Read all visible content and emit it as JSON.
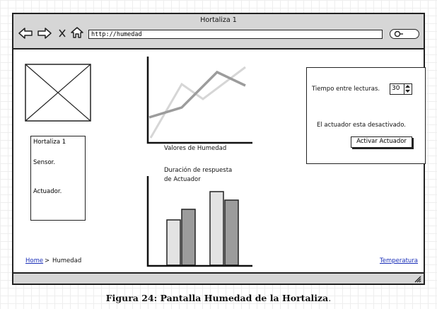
{
  "window": {
    "title": "Hortaliza 1",
    "url": "http://humedad"
  },
  "left_panel": {
    "title": "Hortaliza 1",
    "sensor_label": "Sensor.",
    "actuator_label": "Actuador."
  },
  "line_chart": {
    "label": "Valores de Humedad"
  },
  "bar_chart": {
    "label_line1": "Duración de respuesta",
    "label_line2": "de Actuador"
  },
  "settings": {
    "interval_label": "Tiempo entre lecturas.",
    "interval_value": "30",
    "status_text": "El actuador esta desactivado.",
    "activate_button": "Activar Actuador"
  },
  "breadcrumb": {
    "home": "Home",
    "separator": ">",
    "current": "Humedad"
  },
  "footer_link": "Temperatura",
  "caption": {
    "prefix": "Figura 24: Pantalla Humedad de la Hortaliza",
    "suffix": "."
  },
  "icons": [
    "back-arrow-icon",
    "forward-arrow-icon",
    "close-icon",
    "home-icon",
    "search-icon",
    "resize-grip-icon"
  ]
}
